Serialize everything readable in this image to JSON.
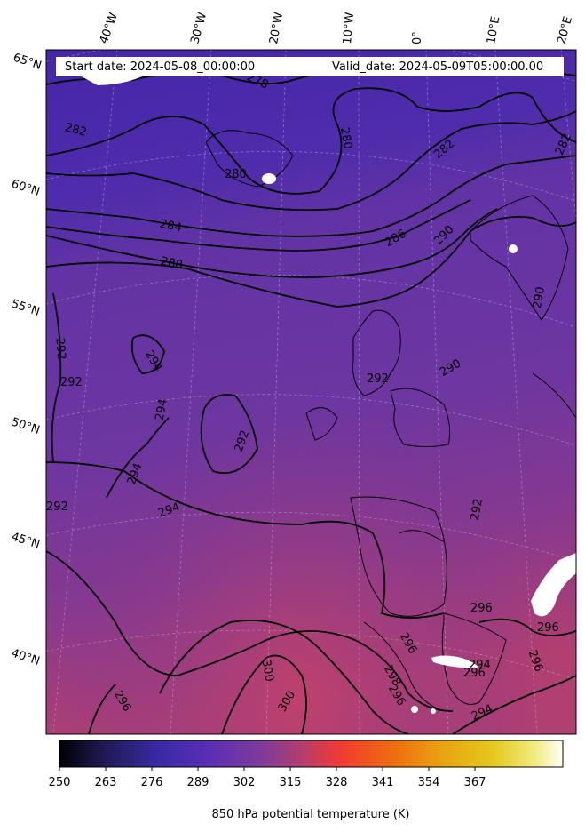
{
  "header": {
    "start_date": "Start date: 2024-05-08_00:00:00",
    "valid_date": "Valid_date: 2024-05-09T05:00:00.00"
  },
  "longitude_labels": [
    "40°W",
    "30°W",
    "20°W",
    "10°W",
    "0°",
    "10°E",
    "20°E"
  ],
  "latitude_labels": [
    "65°N",
    "60°N",
    "55°N",
    "50°N",
    "45°N",
    "40°N"
  ],
  "contour_labels": [
    "278",
    "282",
    "280",
    "280",
    "282",
    "282",
    "284",
    "286",
    "290",
    "288",
    "290",
    "292",
    "292",
    "294",
    "294",
    "292",
    "294",
    "294",
    "290",
    "292",
    "292",
    "292",
    "296",
    "296",
    "296",
    "298",
    "300",
    "300",
    "296",
    "296",
    "294",
    "294",
    "296",
    "296"
  ],
  "colorbar": {
    "label": "850 hPa potential temperature (K)",
    "ticks": [
      "250",
      "263",
      "276",
      "289",
      "302",
      "315",
      "328",
      "341",
      "354",
      "367"
    ],
    "colormap": [
      "#000004",
      "#1f1a55",
      "#3b2aa6",
      "#5a2fb4",
      "#7e3a9a",
      "#b23d6f",
      "#f23b2e",
      "#ef6b10",
      "#e9a310",
      "#e6c81a",
      "#f0ea7a",
      "#fffff4"
    ]
  },
  "colors": {
    "north_field": "#4a2aa8",
    "mid_field": "#6a35a3",
    "south_field": "#a2407a",
    "contour": "#000000",
    "missing": "#ffffff"
  }
}
